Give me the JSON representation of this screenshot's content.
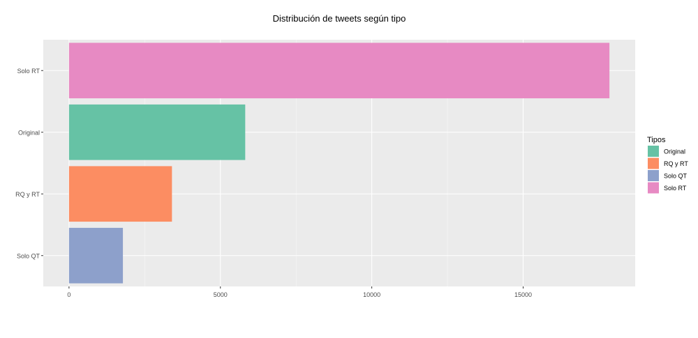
{
  "chart_data": {
    "type": "bar",
    "orientation": "horizontal",
    "title": "Distribución de tweets según tipo",
    "xlabel": "",
    "ylabel": "",
    "categories": [
      "Solo RT",
      "Original",
      "RQ y RT",
      "Solo QT"
    ],
    "values": [
      17850,
      5820,
      3400,
      1780
    ],
    "colors": [
      "#e78ac3",
      "#66c2a5",
      "#fc8d62",
      "#8da0cb"
    ],
    "xlim": [
      -850,
      18700
    ],
    "xticks": [
      0,
      5000,
      10000,
      15000
    ],
    "xtick_labels": [
      "0",
      "5000",
      "10000",
      "15000"
    ],
    "grid": true,
    "legend": {
      "title": "Tipos",
      "position": "right",
      "entries": [
        {
          "label": "Original",
          "color": "#66c2a5"
        },
        {
          "label": "RQ y RT",
          "color": "#fc8d62"
        },
        {
          "label": "Solo QT",
          "color": "#8da0cb"
        },
        {
          "label": "Solo RT",
          "color": "#e78ac3"
        }
      ]
    }
  }
}
